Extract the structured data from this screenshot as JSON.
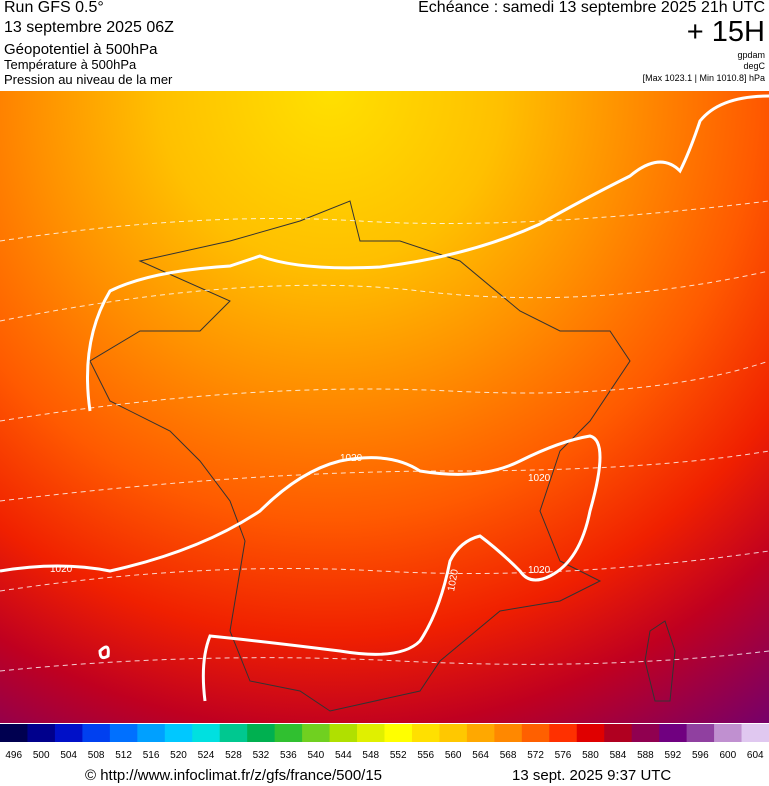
{
  "header": {
    "run": "Run GFS 0.5°",
    "date": "13 septembre 2025 06Z",
    "title": "Géopotentiel à 500hPa",
    "subtitle1": "Température à 500hPa",
    "subtitle2": "Pression au niveau de la mer",
    "forecast": "Echéance : samedi 13 septembre 2025 21h UTC",
    "lead": "+ 15H",
    "unit1": "gpdam",
    "unit2": "degC",
    "range": "[Max 1023.1 | Min 1010.8] hPa"
  },
  "map": {
    "contour_labels": [
      "1020",
      "1020",
      "1020",
      "1020",
      "1020"
    ]
  },
  "colorbar": {
    "ticks": [
      496,
      500,
      504,
      508,
      512,
      516,
      520,
      524,
      528,
      532,
      536,
      540,
      544,
      548,
      552,
      556,
      560,
      564,
      568,
      572,
      576,
      580,
      584,
      588,
      592,
      596,
      600,
      604
    ],
    "colors": [
      "#000050",
      "#00008c",
      "#0010c8",
      "#0040f0",
      "#0070ff",
      "#00a0ff",
      "#00c8ff",
      "#00e0e0",
      "#00c890",
      "#00b050",
      "#30c030",
      "#70d020",
      "#b0e000",
      "#e0f000",
      "#ffff00",
      "#ffe000",
      "#ffc800",
      "#ffa800",
      "#ff8800",
      "#ff6000",
      "#ff3000",
      "#e00000",
      "#b00020",
      "#900050",
      "#700080",
      "#9040a0",
      "#c090d0",
      "#e0c8f0"
    ]
  },
  "footer": {
    "source": "© http://www.infoclimat.fr/z/gfs/france/500/15",
    "timestamp": "13 sept. 2025  9:37 UTC"
  }
}
